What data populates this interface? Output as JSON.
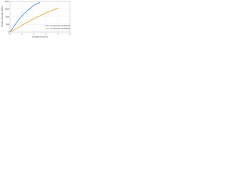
{
  "chart_data": {
    "type": "line",
    "xlabel": "Lengthening (%)",
    "ylabel": "Tensile strength (MPa)",
    "xlim": [
      0,
      5
    ],
    "xticks": [
      0,
      1,
      2,
      3,
      4,
      5
    ],
    "ylim": [
      0,
      1600
    ],
    "yticks": [
      0,
      400,
      800,
      1200,
      1600
    ],
    "grid": true,
    "legend": "lower right",
    "series": [
      {
        "name": "Composite CF/Matrix",
        "color": "#3a8fd9",
        "x": [
          0,
          0.5,
          1,
          1.5,
          2,
          2.5
        ],
        "values": [
          0,
          450,
          850,
          1150,
          1400,
          1550
        ]
      },
      {
        "name": "Composite GF/Matrix",
        "color": "#f0a030",
        "x": [
          0,
          1,
          2,
          3,
          4
        ],
        "values": [
          0,
          350,
          700,
          1000,
          1250
        ]
      }
    ]
  }
}
